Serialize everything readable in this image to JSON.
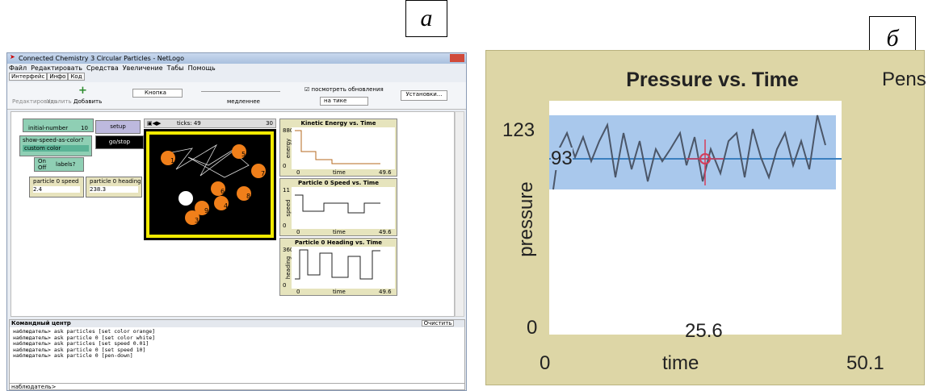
{
  "panel_labels": [
    "а",
    "б"
  ],
  "window": {
    "title": "Connected Chemistry 3 Circular Particles - NetLogo",
    "menu": [
      "Файл",
      "Редактировать",
      "Средства",
      "Увеличение",
      "Табы",
      "Помощь"
    ],
    "tabs": [
      "Интерфейс",
      "Инфо",
      "Код"
    ],
    "toolbar": {
      "edit": "Редактировать",
      "delete": "Удалить",
      "add": "Добавить",
      "widget": "Кнопка",
      "speed": "медленнее",
      "view_updates": "посмотреть обновления",
      "update_mode": "на тике",
      "settings": "Установки..."
    }
  },
  "widgets": {
    "slider_name": "initial-number",
    "slider_value": 10,
    "setup": "setup",
    "go": "go/stop",
    "chooser_name": "show-speed-as-color?",
    "chooser_value": "custom color",
    "switch_on": "On",
    "switch_off": "Off",
    "switch_name": "labels?",
    "monitor_speed_name": "particle 0 speed",
    "monitor_speed_value": 2.4,
    "monitor_heading_name": "particle 0 heading",
    "monitor_heading_value": 238.3
  },
  "world": {
    "ticks_label": "ticks:",
    "ticks": 49,
    "speed": 30,
    "particle_labels": [
      "5",
      "7",
      "1",
      "9",
      "6",
      "8",
      "4",
      "3"
    ]
  },
  "plots": [
    {
      "title": "Kinetic Energy vs. Time",
      "y_max": 880,
      "y_min": 0,
      "x_min": 0,
      "x_max": 49.6,
      "x_label": "time",
      "y_label": "energy"
    },
    {
      "title": "Particle 0 Speed vs. Time",
      "y_max": 11,
      "y_min": 0,
      "x_min": 0,
      "x_max": 49.6,
      "x_label": "time",
      "y_label": "speed"
    },
    {
      "title": "Particle 0 Heading vs. Time",
      "y_max": 360,
      "y_min": 0,
      "x_min": 0,
      "x_max": 49.6,
      "x_label": "time",
      "y_label": "heading"
    }
  ],
  "command_center": {
    "title": "Командный центр",
    "clear": "Очистить",
    "lines": [
      "наблюдатель> ask particles [set color orange]",
      "наблюдатель> ask particle 0 [set color white]",
      "наблюдатель> ask particles [set speed 0.01]",
      "наблюдатель> ask particle 0 [set speed 10]",
      "наблюдатель> ask particle 0 [pen-down]"
    ],
    "prompt": "наблюдатель>"
  },
  "pressure_plot": {
    "title": "Pressure vs. Time",
    "pens": "Pens",
    "y_max": 123,
    "y_current": 93,
    "y_min": 0,
    "x_current": 25.6,
    "x_min": 0,
    "x_max": 50.1,
    "x_label": "time",
    "y_label": "pressure"
  }
}
